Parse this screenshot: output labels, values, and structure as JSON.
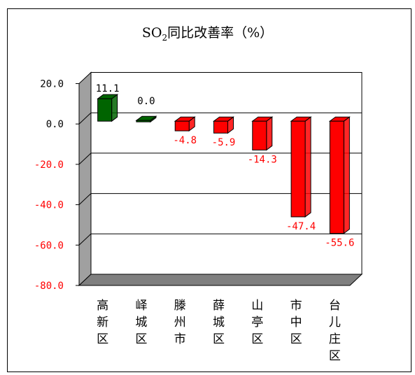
{
  "chart_data": {
    "type": "bar",
    "title_main": "SO",
    "title_sub": "2",
    "title_rest": "同比改善率（%）",
    "categories": [
      "高新区",
      "峄城区",
      "滕州市",
      "薛城区",
      "山亭区",
      "市中区",
      "台儿庄区"
    ],
    "values": [
      11.1,
      0.0,
      -4.8,
      -5.9,
      -14.3,
      -47.4,
      -55.6
    ],
    "value_labels": [
      "11.1",
      "0.0",
      "-4.8",
      "-5.9",
      "-14.3",
      "-47.4",
      "-55.6"
    ],
    "ylim": [
      -80,
      20
    ],
    "yticks": [
      20,
      0,
      -20,
      -40,
      -60,
      -80
    ],
    "ytick_labels": [
      "20.0",
      "0.0",
      "-20.0",
      "-40.0",
      "-60.0",
      "-80.0"
    ],
    "grid": true,
    "colors": {
      "positive": "#006400",
      "negative": "#ff0000",
      "positive_label": "#000000",
      "negative_label": "#ff0000",
      "wall": "#ffffff",
      "side_wall": "#a0a0a0",
      "floor": "#7f7f7f"
    }
  }
}
